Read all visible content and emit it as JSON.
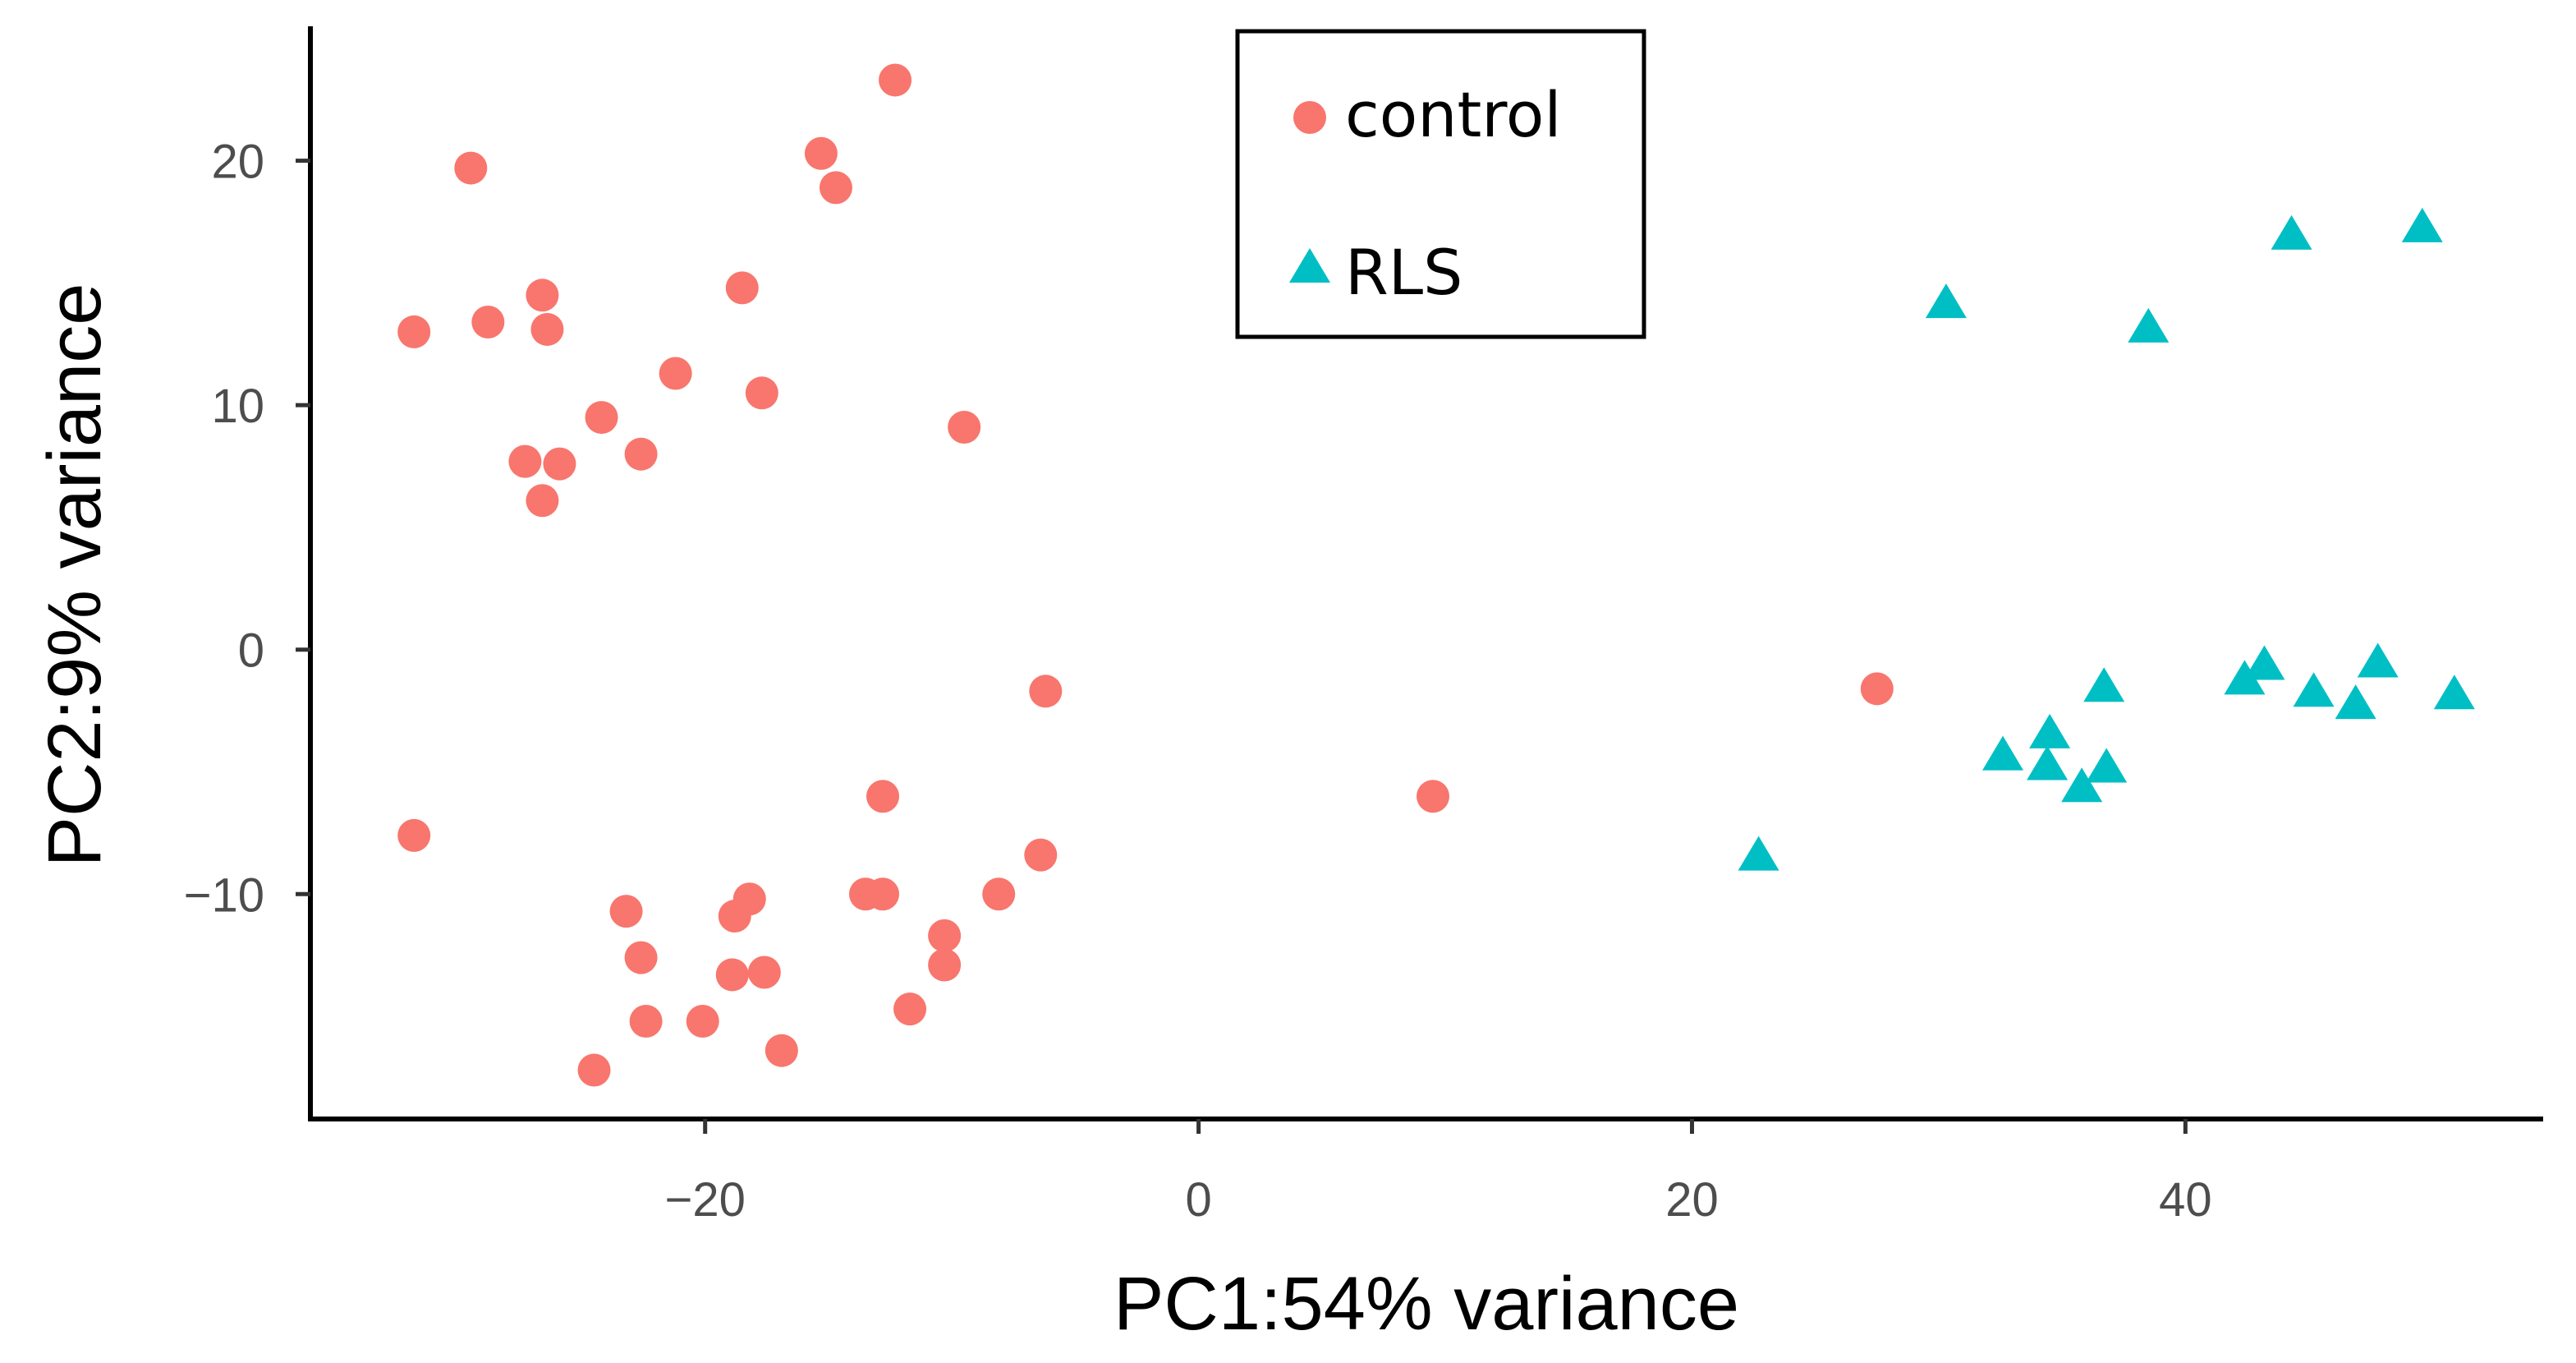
{
  "chart_data": {
    "type": "scatter",
    "title": "",
    "xlabel": "PC1:54% variance",
    "ylabel": "PC2:9% variance",
    "xlim": [
      -36,
      54.5
    ],
    "ylim": [
      -19.2,
      25.5
    ],
    "x_ticks": [
      -20,
      0,
      20,
      40
    ],
    "x_tick_labels": [
      "−20",
      "0",
      "20",
      "40"
    ],
    "y_ticks": [
      -10,
      0,
      10,
      20
    ],
    "y_tick_labels": [
      "−10",
      "0",
      "10",
      "20"
    ],
    "grid": false,
    "legend_position": "top-center",
    "series": [
      {
        "name": "control",
        "marker": "circle",
        "color": "#F8766D",
        "points": [
          [
            -12.3,
            23.3
          ],
          [
            -15.3,
            20.3
          ],
          [
            -14.7,
            18.9
          ],
          [
            -29.5,
            19.7
          ],
          [
            -31.8,
            13.0
          ],
          [
            -28.8,
            13.4
          ],
          [
            -26.6,
            14.5
          ],
          [
            -26.4,
            13.1
          ],
          [
            -18.5,
            14.8
          ],
          [
            -21.2,
            11.3
          ],
          [
            -17.7,
            10.5
          ],
          [
            -24.2,
            9.5
          ],
          [
            -9.5,
            9.1
          ],
          [
            -22.6,
            8.0
          ],
          [
            -27.3,
            7.7
          ],
          [
            -25.9,
            7.6
          ],
          [
            -26.6,
            6.1
          ],
          [
            -6.2,
            -1.7
          ],
          [
            27.5,
            -1.6
          ],
          [
            9.5,
            -6.0
          ],
          [
            -12.8,
            -6.0
          ],
          [
            -31.8,
            -7.6
          ],
          [
            -6.4,
            -8.4
          ],
          [
            -13.5,
            -10.0
          ],
          [
            -12.8,
            -10.0
          ],
          [
            -8.1,
            -10.0
          ],
          [
            -18.2,
            -10.2
          ],
          [
            -23.2,
            -10.7
          ],
          [
            -18.8,
            -10.9
          ],
          [
            -10.3,
            -11.7
          ],
          [
            -22.6,
            -12.6
          ],
          [
            -10.3,
            -12.9
          ],
          [
            -18.9,
            -13.3
          ],
          [
            -17.6,
            -13.2
          ],
          [
            -11.7,
            -14.7
          ],
          [
            -22.4,
            -15.2
          ],
          [
            -20.1,
            -15.2
          ],
          [
            -16.9,
            -16.4
          ],
          [
            -24.5,
            -17.2
          ]
        ]
      },
      {
        "name": "RLS",
        "marker": "triangle",
        "color": "#00BFC4",
        "points": [
          [
            49.6,
            17.2
          ],
          [
            44.3,
            16.9
          ],
          [
            38.5,
            13.1
          ],
          [
            30.3,
            14.1
          ],
          [
            36.7,
            -1.6
          ],
          [
            43.2,
            -0.7
          ],
          [
            47.8,
            -0.6
          ],
          [
            42.4,
            -1.3
          ],
          [
            45.2,
            -1.8
          ],
          [
            50.9,
            -1.9
          ],
          [
            46.9,
            -2.3
          ],
          [
            34.5,
            -3.5
          ],
          [
            32.6,
            -4.4
          ],
          [
            34.4,
            -4.8
          ],
          [
            36.8,
            -4.9
          ],
          [
            35.8,
            -5.7
          ],
          [
            22.7,
            -8.5
          ]
        ]
      }
    ]
  }
}
